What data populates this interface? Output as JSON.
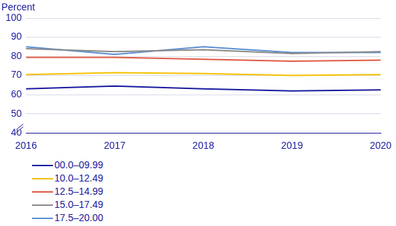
{
  "chart_data": {
    "type": "line",
    "y_label": "Percent",
    "categories": [
      "2016",
      "2017",
      "2018",
      "2019",
      "2020"
    ],
    "series": [
      {
        "name": "00.0–09.99",
        "color": "#1a1aa0",
        "values": [
          63,
          64.5,
          63,
          62,
          62.5
        ]
      },
      {
        "name": "10.0–12.49",
        "color": "#f5c000",
        "values": [
          70.5,
          71.5,
          71,
          70,
          70.5
        ]
      },
      {
        "name": "12.5–14.99",
        "color": "#e05a45",
        "values": [
          79.5,
          79.5,
          78.5,
          77.5,
          78
        ]
      },
      {
        "name": "15.0–17.49",
        "color": "#8a8a8a",
        "values": [
          84,
          82.5,
          83.5,
          81.5,
          82.5
        ]
      },
      {
        "name": "17.5–20.00",
        "color": "#5b8fd4",
        "values": [
          85,
          81,
          85,
          82,
          82
        ]
      }
    ],
    "ylim": [
      40,
      100
    ],
    "yticks": [
      40,
      50,
      60,
      70,
      80,
      90,
      100
    ],
    "grid": true,
    "legend": "bottom"
  }
}
